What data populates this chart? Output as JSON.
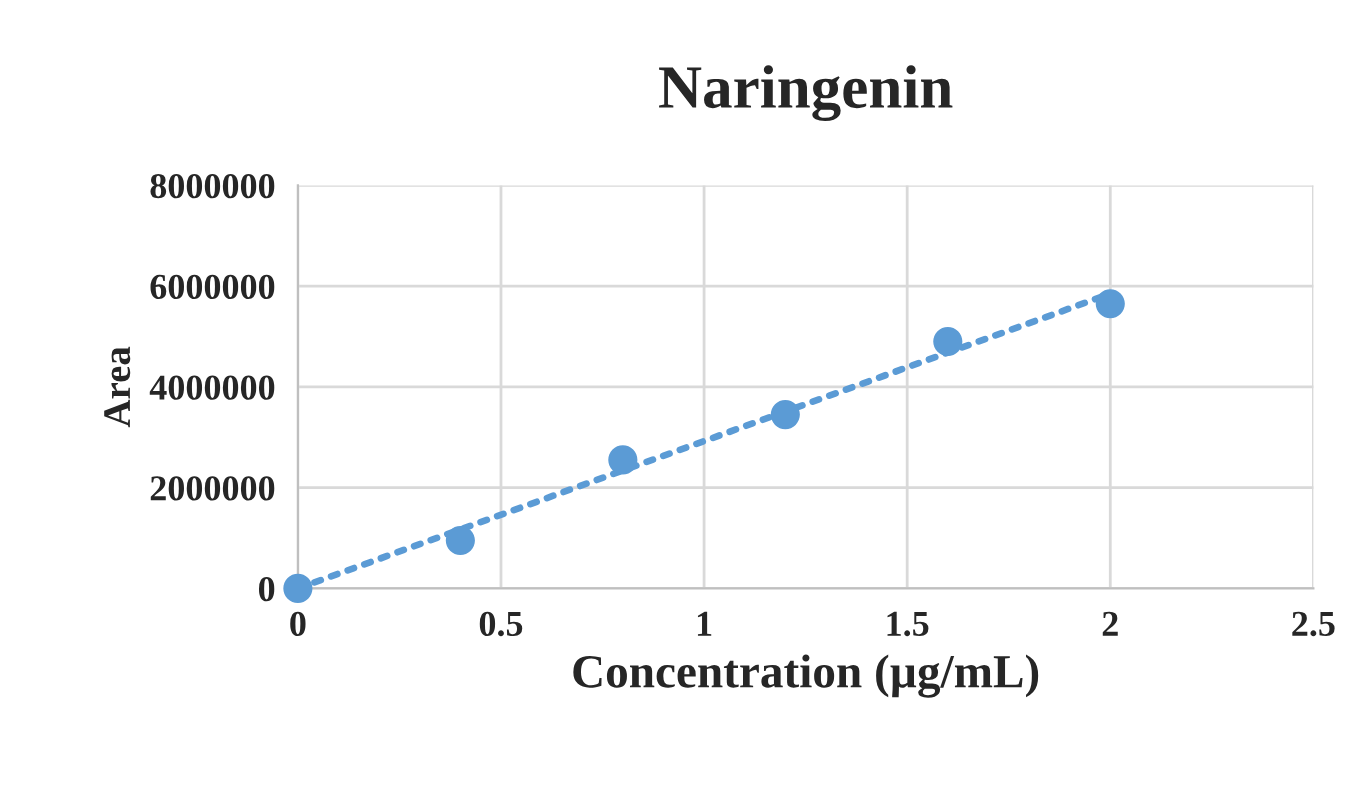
{
  "chart_data": {
    "type": "scatter",
    "title": "Naringenin",
    "xlabel": "Concentration (µg/mL)",
    "ylabel": "Area",
    "series": [
      {
        "color": "#5b9bd5",
        "x": [
          0,
          0.4,
          0.8,
          1.2,
          1.6,
          2.0
        ],
        "values": [
          0,
          950000,
          2550000,
          3450000,
          4900000,
          5650000
        ],
        "marker": "circle"
      },
      {
        "type": "line",
        "color": "#5b9bd5",
        "x": [
          0,
          2.0
        ],
        "values": [
          0,
          5850000
        ],
        "line_style": "dotted",
        "marker": "none"
      }
    ],
    "xlim": [
      0,
      2.5
    ],
    "xticks": [
      0,
      0.5,
      1,
      1.5,
      2,
      2.5
    ],
    "ylim": [
      0,
      8000000
    ],
    "yticks": [
      0,
      2000000,
      4000000,
      6000000,
      8000000
    ],
    "grid": true,
    "legend": false
  }
}
